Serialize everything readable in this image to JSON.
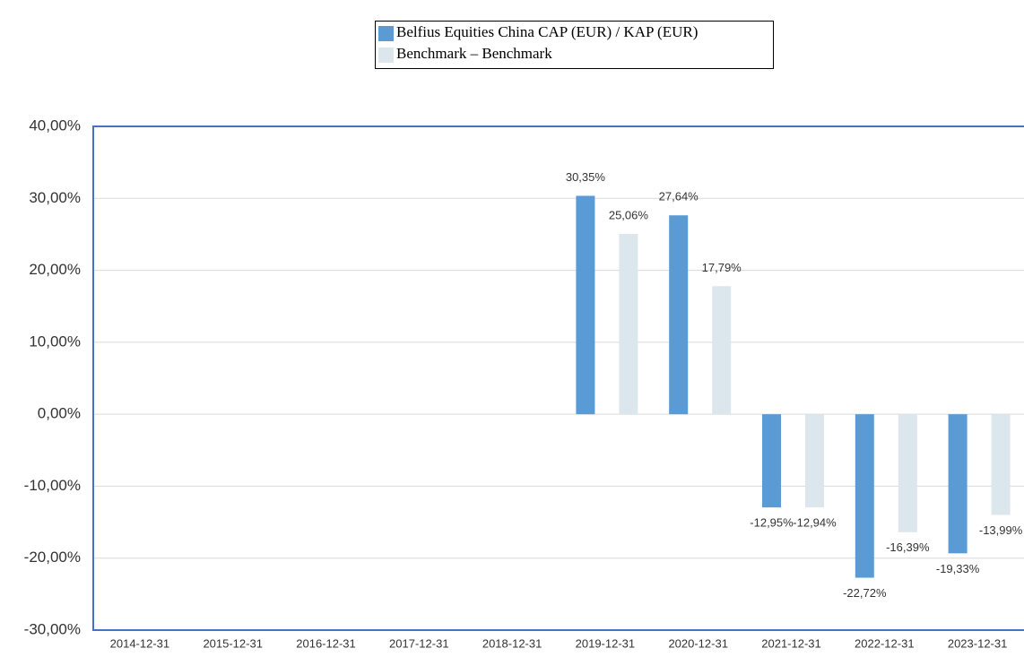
{
  "chart_data": {
    "type": "bar",
    "categories": [
      "2014-12-31",
      "2015-12-31",
      "2016-12-31",
      "2017-12-31",
      "2018-12-31",
      "2019-12-31",
      "2020-12-31",
      "2021-12-31",
      "2022-12-31",
      "2023-12-31"
    ],
    "series": [
      {
        "name": "Belfius Equities China CAP (EUR) / KAP (EUR)",
        "color": "#5b9bd5",
        "values": [
          null,
          null,
          null,
          null,
          null,
          30.35,
          27.64,
          -12.95,
          -22.72,
          -19.33
        ],
        "value_labels": [
          null,
          null,
          null,
          null,
          null,
          "30,35%",
          "27,64%",
          "-12,95%",
          "-22,72%",
          "-19,33%"
        ]
      },
      {
        "name": "Benchmark – Benchmark",
        "color": "#dce6ed",
        "values": [
          null,
          null,
          null,
          null,
          null,
          25.06,
          17.79,
          -12.94,
          -16.39,
          -13.99
        ],
        "value_labels": [
          null,
          null,
          null,
          null,
          null,
          "25,06%",
          "17,79%",
          "-12,94%",
          "-16,39%",
          "-13,99%"
        ]
      }
    ],
    "ylim": [
      -30,
      40
    ],
    "yticks": [
      {
        "value": -30,
        "label": "-30,00%"
      },
      {
        "value": -20,
        "label": "-20,00%"
      },
      {
        "value": -10,
        "label": "-10,00%"
      },
      {
        "value": 0,
        "label": "0,00%"
      },
      {
        "value": 10,
        "label": "10,00%"
      },
      {
        "value": 20,
        "label": "20,00%"
      },
      {
        "value": 30,
        "label": "30,00%"
      },
      {
        "value": 40,
        "label": "40,00%"
      }
    ],
    "grid": true
  }
}
